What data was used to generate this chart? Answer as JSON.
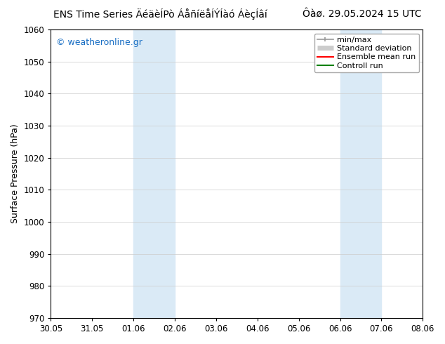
{
  "title_left": "ENS Time Series ÄéäèÍPò ÁåñíëåÍÝÍàó ÁèçÍâí",
  "title_right": "Ôàø. 29.05.2024 15 UTC",
  "ylabel": "Surface Pressure (hPa)",
  "ylim": [
    970,
    1060
  ],
  "yticks": [
    970,
    980,
    990,
    1000,
    1010,
    1020,
    1030,
    1040,
    1050,
    1060
  ],
  "xlabels": [
    "30.05",
    "31.05",
    "01.06",
    "02.06",
    "03.06",
    "04.06",
    "05.06",
    "06.06",
    "07.06",
    "08.06"
  ],
  "x_values": [
    0,
    1,
    2,
    3,
    4,
    5,
    6,
    7,
    8,
    9
  ],
  "xlim": [
    0,
    9
  ],
  "shaded_regions": [
    {
      "x_start": 2,
      "x_end": 3,
      "color": "#daeaf6"
    },
    {
      "x_start": 7,
      "x_end": 8,
      "color": "#daeaf6"
    }
  ],
  "watermark_text": "© weatheronline.gr",
  "watermark_color": "#1a6fc4",
  "legend_entries": [
    {
      "label": "min/max",
      "color": "#999999",
      "lw": 1.2
    },
    {
      "label": "Standard deviation",
      "color": "#cccccc",
      "lw": 5
    },
    {
      "label": "Ensemble mean run",
      "color": "red",
      "lw": 1.5
    },
    {
      "label": "Controll run",
      "color": "green",
      "lw": 1.5
    }
  ],
  "bg_color": "#ffffff",
  "grid_color": "#cccccc",
  "title_fontsize": 10,
  "ylabel_fontsize": 9,
  "tick_fontsize": 8.5,
  "legend_fontsize": 8,
  "watermark_fontsize": 9
}
